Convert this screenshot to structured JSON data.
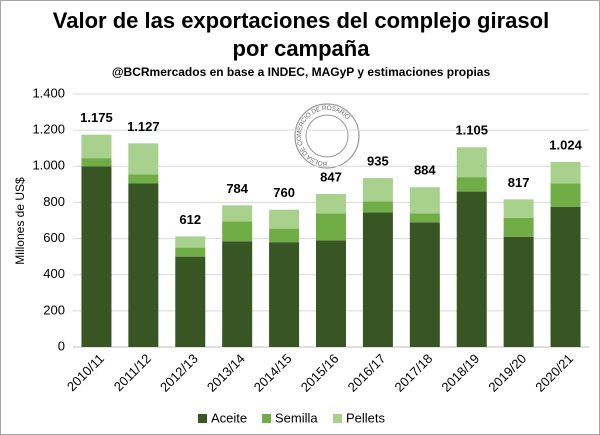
{
  "chart_data": {
    "type": "stacked_bar",
    "title": "Valor de las exportaciones del complejo girasol por campaña",
    "subtitle": "@BCRmercados  en base a INDEC, MAGyP y estimaciones propias",
    "y_label": "Millones de US$",
    "watermark": "BOLSA DE COMERCIO DE ROSARIO",
    "categories": [
      "2010/11",
      "2011/12",
      "2012/13",
      "2013/14",
      "2014/15",
      "2015/16",
      "2016/17",
      "2017/18",
      "2018/19",
      "2019/20",
      "2020/21"
    ],
    "series": [
      {
        "name": "Aceite",
        "color": "#375623",
        "values": [
          1000,
          905,
          500,
          585,
          580,
          590,
          745,
          690,
          860,
          610,
          775
        ]
      },
      {
        "name": "Semilla",
        "color": "#70ad47",
        "values": [
          45,
          50,
          50,
          110,
          75,
          150,
          60,
          50,
          80,
          105,
          130
        ]
      },
      {
        "name": "Pellets",
        "color": "#a9d18e",
        "values": [
          130,
          172,
          62,
          89,
          105,
          107,
          130,
          144,
          165,
          102,
          119
        ]
      }
    ],
    "totals": {
      "values": [
        1175,
        1127,
        612,
        784,
        760,
        847,
        935,
        884,
        1105,
        817,
        1024
      ],
      "value_labels": [
        "1.175",
        "1.127",
        "612",
        "784",
        "760",
        "847",
        "935",
        "884",
        "1.105",
        "817",
        "1.024"
      ]
    },
    "ylim": [
      0,
      1400
    ],
    "yticks": [
      0,
      200,
      400,
      600,
      800,
      {
        "value": 1000,
        "label": "1.000"
      },
      {
        "value": 1200,
        "label": "1.200"
      },
      {
        "value": 1400,
        "label": "1.400"
      }
    ],
    "grid": true,
    "legend": "bottom"
  }
}
